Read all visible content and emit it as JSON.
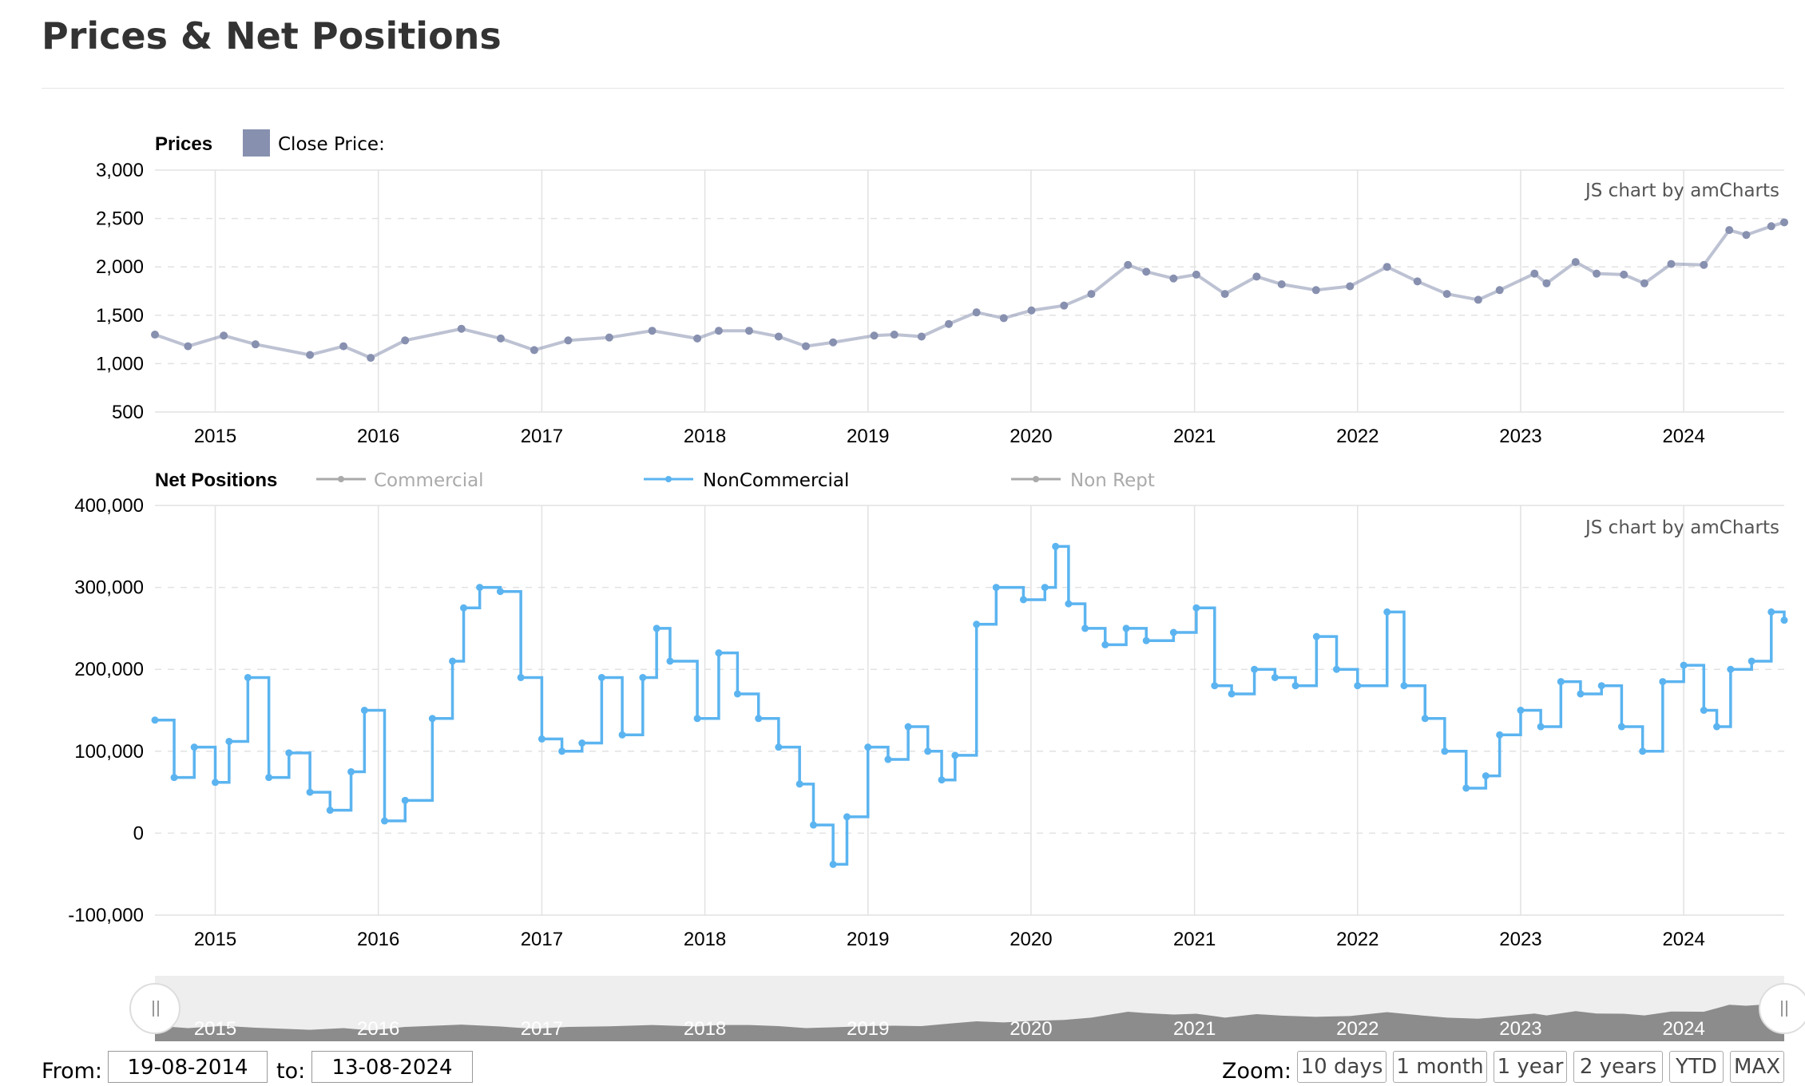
{
  "page": {
    "title": "Prices & Net Positions"
  },
  "colors": {
    "price": "#8790AF",
    "noncommercial": "#5BB4F0",
    "commercial": "#AAAAAA",
    "nonrept": "#AAAAAA",
    "grid": "#e2e2e2",
    "scrollbar_bg": "#eeeeee",
    "scrollbar_fill": "#8c8c8c"
  },
  "credit": "JS chart by amCharts",
  "chart_data": [
    {
      "type": "scatter",
      "panel_title": "Prices",
      "legend": [
        {
          "label": "Close Price:",
          "color": "#8790AF"
        }
      ],
      "x_ticks": [
        "2015",
        "2016",
        "2017",
        "2018",
        "2019",
        "2020",
        "2021",
        "2022",
        "2023",
        "2024"
      ],
      "y_ticks": [
        "3,000",
        "2,500",
        "2,000",
        "1,500",
        "1,000",
        "500"
      ],
      "ylim": [
        500,
        3000
      ],
      "grid": true,
      "series": [
        {
          "name": "Close Price",
          "x": [
            "2014-08-19",
            "2014-11-01",
            "2015-01-20",
            "2015-04-01",
            "2015-08-01",
            "2015-10-15",
            "2015-12-15",
            "2016-03-01",
            "2016-07-05",
            "2016-10-01",
            "2016-12-15",
            "2017-03-01",
            "2017-06-01",
            "2017-09-05",
            "2017-12-15",
            "2018-02-01",
            "2018-04-10",
            "2018-06-15",
            "2018-08-15",
            "2018-10-15",
            "2019-01-15",
            "2019-03-01",
            "2019-05-01",
            "2019-07-01",
            "2019-09-01",
            "2019-11-01",
            "2020-01-02",
            "2020-03-15",
            "2020-05-15",
            "2020-08-05",
            "2020-09-15",
            "2020-11-15",
            "2021-01-05",
            "2021-03-10",
            "2021-05-20",
            "2021-07-15",
            "2021-09-30",
            "2021-12-15",
            "2022-03-08",
            "2022-05-15",
            "2022-07-20",
            "2022-09-28",
            "2022-11-15",
            "2023-02-01",
            "2023-02-28",
            "2023-05-04",
            "2023-06-20",
            "2023-08-20",
            "2023-10-05",
            "2023-12-04",
            "2024-02-15",
            "2024-04-12",
            "2024-05-20",
            "2024-07-15",
            "2024-08-13"
          ],
          "y": [
            1300,
            1180,
            1290,
            1200,
            1090,
            1180,
            1060,
            1240,
            1360,
            1260,
            1140,
            1240,
            1270,
            1340,
            1260,
            1340,
            1340,
            1280,
            1180,
            1220,
            1290,
            1300,
            1280,
            1410,
            1530,
            1470,
            1550,
            1600,
            1720,
            2020,
            1950,
            1880,
            1920,
            1720,
            1900,
            1820,
            1760,
            1800,
            2000,
            1850,
            1720,
            1660,
            1760,
            1930,
            1830,
            2050,
            1930,
            1920,
            1830,
            2030,
            2020,
            2380,
            2330,
            2420,
            2460
          ]
        }
      ]
    },
    {
      "type": "line",
      "panel_title": "Net Positions",
      "legend": [
        {
          "label": "Commercial",
          "color": "#AAAAAA",
          "hidden": true
        },
        {
          "label": "NonCommercial",
          "color": "#5BB4F0",
          "hidden": false
        },
        {
          "label": "Non Rept",
          "color": "#AAAAAA",
          "hidden": true
        }
      ],
      "x_ticks": [
        "2015",
        "2016",
        "2017",
        "2018",
        "2019",
        "2020",
        "2021",
        "2022",
        "2023",
        "2024"
      ],
      "y_ticks": [
        "400,000",
        "300,000",
        "200,000",
        "100,000",
        "0",
        "-100,000"
      ],
      "ylim": [
        -100000,
        400000
      ],
      "grid": true,
      "series": [
        {
          "name": "NonCommercial",
          "x": [
            "2014-08-19",
            "2014-10-01",
            "2014-11-15",
            "2015-01-01",
            "2015-02-01",
            "2015-03-15",
            "2015-05-01",
            "2015-06-15",
            "2015-08-01",
            "2015-09-15",
            "2015-11-01",
            "2015-12-01",
            "2016-01-15",
            "2016-03-01",
            "2016-05-01",
            "2016-06-15",
            "2016-07-10",
            "2016-08-15",
            "2016-09-30",
            "2016-11-15",
            "2017-01-01",
            "2017-02-15",
            "2017-04-01",
            "2017-05-15",
            "2017-06-30",
            "2017-08-15",
            "2017-09-15",
            "2017-10-15",
            "2017-12-15",
            "2018-02-01",
            "2018-03-15",
            "2018-05-01",
            "2018-06-15",
            "2018-08-01",
            "2018-09-01",
            "2018-10-15",
            "2018-11-15",
            "2019-01-01",
            "2019-02-15",
            "2019-04-01",
            "2019-05-15",
            "2019-06-15",
            "2019-07-15",
            "2019-09-01",
            "2019-10-15",
            "2019-12-15",
            "2020-02-01",
            "2020-02-25",
            "2020-03-25",
            "2020-05-01",
            "2020-06-15",
            "2020-08-01",
            "2020-09-15",
            "2020-11-15",
            "2021-01-05",
            "2021-02-15",
            "2021-03-25",
            "2021-05-15",
            "2021-06-30",
            "2021-08-15",
            "2021-10-01",
            "2021-11-15",
            "2022-01-01",
            "2022-03-08",
            "2022-04-15",
            "2022-06-01",
            "2022-07-15",
            "2022-09-01",
            "2022-10-15",
            "2022-11-15",
            "2023-01-01",
            "2023-02-15",
            "2023-04-01",
            "2023-05-15",
            "2023-07-01",
            "2023-08-15",
            "2023-10-01",
            "2023-11-15",
            "2024-01-01",
            "2024-02-15",
            "2024-03-15",
            "2024-04-15",
            "2024-06-01",
            "2024-07-15",
            "2024-08-13"
          ],
          "y": [
            138000,
            68000,
            105000,
            62000,
            112000,
            190000,
            68000,
            98000,
            50000,
            28000,
            75000,
            150000,
            15000,
            40000,
            140000,
            210000,
            275000,
            300000,
            295000,
            190000,
            115000,
            100000,
            110000,
            190000,
            120000,
            190000,
            250000,
            210000,
            140000,
            220000,
            170000,
            140000,
            105000,
            60000,
            10000,
            -38000,
            20000,
            105000,
            90000,
            130000,
            100000,
            65000,
            95000,
            255000,
            300000,
            285000,
            300000,
            350000,
            280000,
            250000,
            230000,
            250000,
            235000,
            245000,
            275000,
            180000,
            170000,
            200000,
            190000,
            180000,
            240000,
            200000,
            180000,
            270000,
            180000,
            140000,
            100000,
            55000,
            70000,
            120000,
            150000,
            130000,
            185000,
            170000,
            180000,
            130000,
            100000,
            185000,
            205000,
            150000,
            130000,
            200000,
            210000,
            270000,
            260000
          ]
        }
      ]
    }
  ],
  "scrollbar": {
    "labels": [
      "2015",
      "2016",
      "2017",
      "2018",
      "2019",
      "2020",
      "2021",
      "2022",
      "2023",
      "2024"
    ],
    "left_handle_icon": "grip-icon",
    "right_handle_icon": "grip-icon"
  },
  "range": {
    "from_label": "From:",
    "from_value": "19-08-2014",
    "to_label": "to:",
    "to_value": "13-08-2024"
  },
  "zoom": {
    "label": "Zoom:",
    "buttons": [
      "10 days",
      "1 month",
      "1 year",
      "2 years",
      "YTD",
      "MAX"
    ]
  }
}
